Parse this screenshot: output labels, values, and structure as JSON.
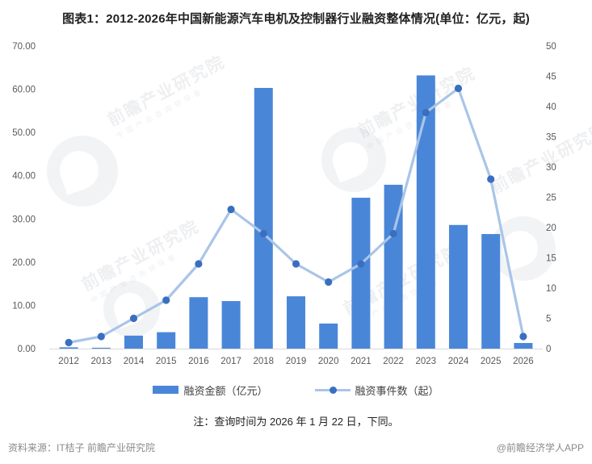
{
  "title": "图表1：2012-2026年中国新能源汽车电机及控制器行业融资整体情况(单位：亿元，起)",
  "chart_data": {
    "type": "combo",
    "categories": [
      "2012",
      "2013",
      "2014",
      "2015",
      "2016",
      "2017",
      "2018",
      "2019",
      "2020",
      "2021",
      "2022",
      "2023",
      "2024",
      "2025",
      "2026"
    ],
    "series": [
      {
        "name": "融资金额（亿元）",
        "type": "bar",
        "axis": "left",
        "color": "#4a86d8",
        "values": [
          0.3,
          0.2,
          3.0,
          3.8,
          11.9,
          11.0,
          60.3,
          12.1,
          5.8,
          34.9,
          37.9,
          63.2,
          28.6,
          26.5,
          1.3
        ]
      },
      {
        "name": "融资事件数（起）",
        "type": "line",
        "axis": "right",
        "color": "#a9c5e8",
        "marker_color": "#3a6fc0",
        "values": [
          1,
          2,
          5,
          8,
          14,
          23,
          19,
          14,
          11,
          14,
          19,
          39,
          43,
          28,
          2
        ]
      }
    ],
    "left_axis": {
      "min": 0,
      "max": 70,
      "step": 10,
      "format": "two-decimals",
      "labels": [
        "0.00",
        "10.00",
        "20.00",
        "30.00",
        "40.00",
        "50.00",
        "60.00",
        "70.00"
      ]
    },
    "right_axis": {
      "min": 0,
      "max": 50,
      "step": 5,
      "labels": [
        "0",
        "5",
        "10",
        "15",
        "20",
        "25",
        "30",
        "35",
        "40",
        "45",
        "50"
      ]
    },
    "grid": false,
    "legend_position": "bottom",
    "axis_text_color": "#595959",
    "axis_line_color": "#d9d9d9"
  },
  "note": "注：查询时间为 2026 年 1 月 22 日，下同。",
  "source": "资料来源：IT桔子 前瞻产业研究院",
  "credit": "@前瞻经济学人APP",
  "watermark": "前瞻产业研究院",
  "watermark_sub": "中 国 产 业 咨 询 领 导 者"
}
